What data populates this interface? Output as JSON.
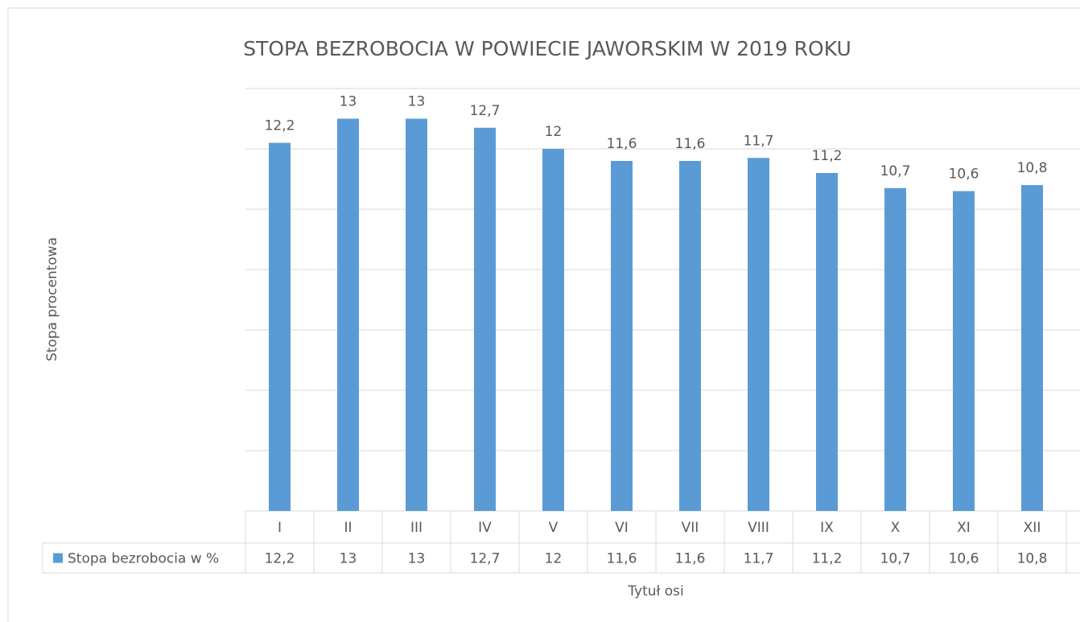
{
  "chart_data": {
    "type": "bar",
    "title": "STOPA BEZROBOCIA W POWIECIE JAWORSKIM W 2019 ROKU",
    "y_label": "Stopa procentowa",
    "x_label": "Tytuł osi",
    "categories": [
      "I",
      "II",
      "III",
      "IV",
      "V",
      "VI",
      "VII",
      "VIII",
      "IX",
      "X",
      "XI",
      "XII"
    ],
    "series": [
      {
        "name": "Stopa bezrobocia w %",
        "color": "#5b9bd5",
        "values": [
          12.2,
          13,
          13,
          12.7,
          12,
          11.6,
          11.6,
          11.7,
          11.2,
          10.7,
          10.6,
          10.8
        ],
        "value_labels": [
          "12,2",
          "13",
          "13",
          "12,7",
          "12",
          "11,6",
          "11,6",
          "11,7",
          "11,2",
          "10,7",
          "10,6",
          "10,8"
        ]
      }
    ],
    "ylim": [
      0,
      14
    ],
    "yticks": [
      0,
      2,
      4,
      6,
      8,
      10,
      12,
      14
    ],
    "grid": true
  }
}
